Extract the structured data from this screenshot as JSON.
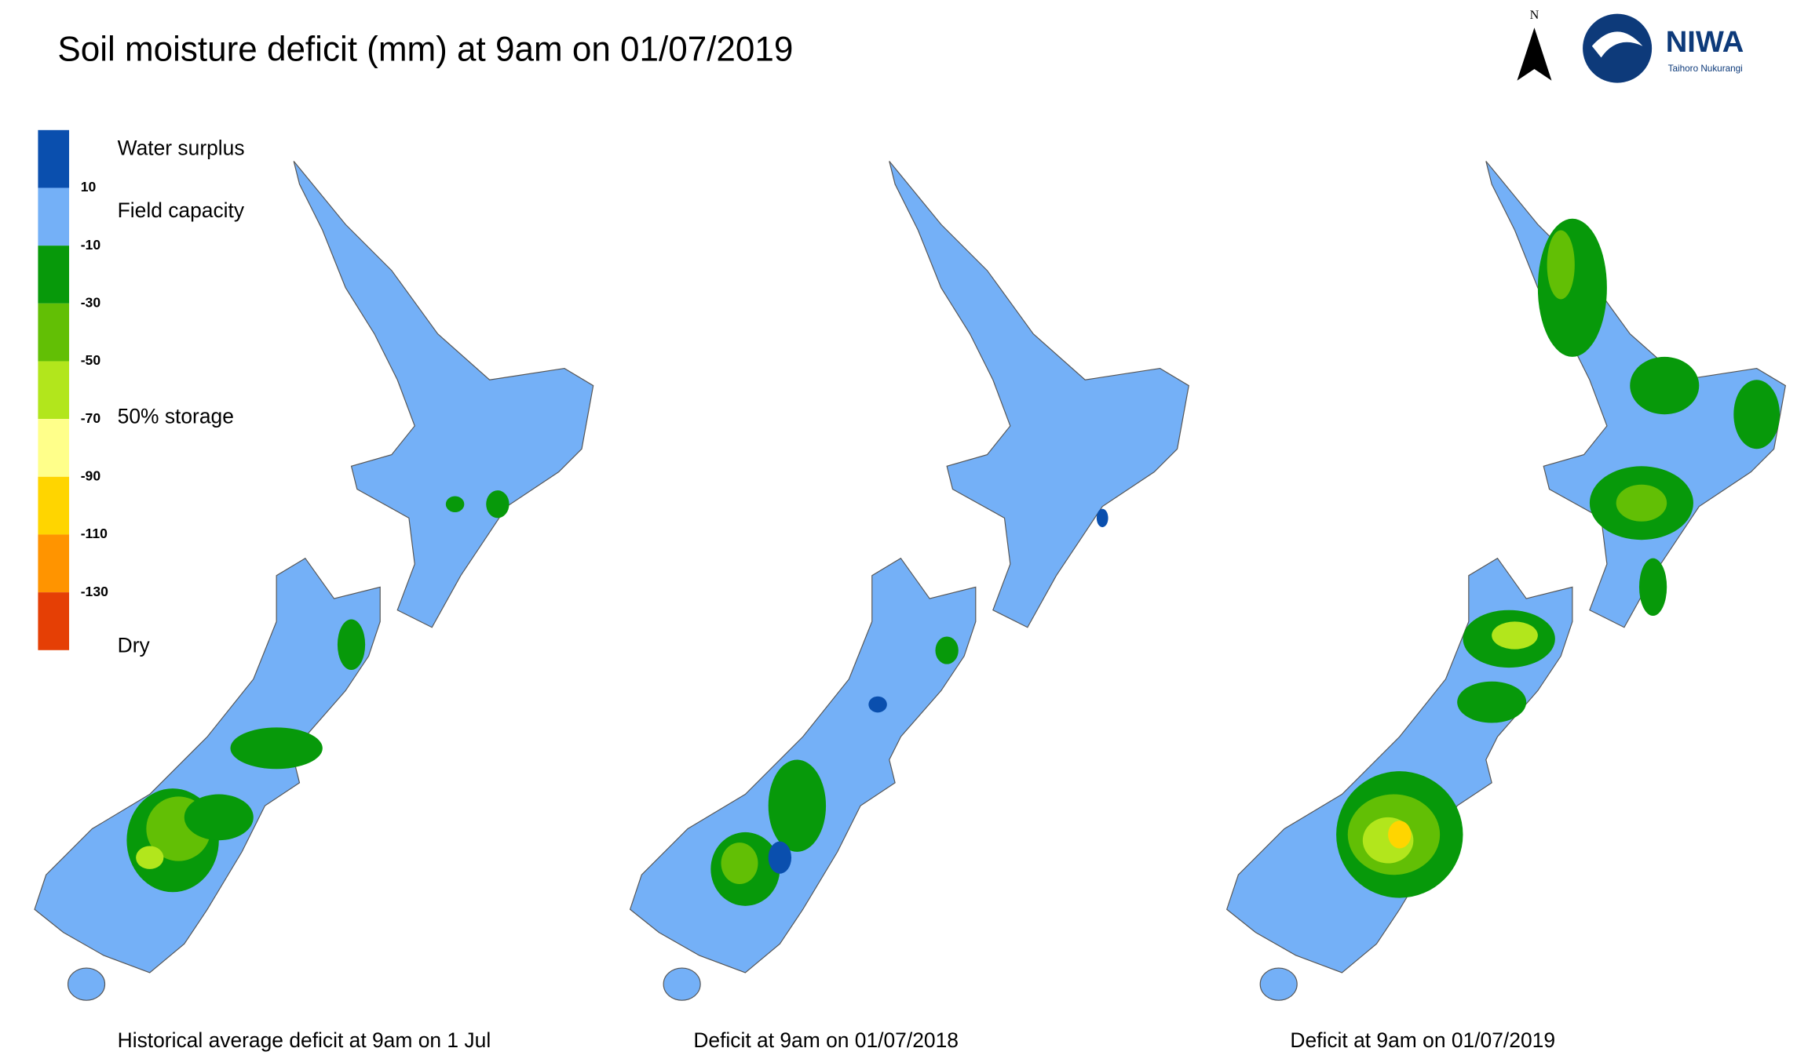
{
  "header": {
    "title": "Soil moisture deficit (mm) at  9am on 01/07/2019",
    "north": "N",
    "logo": "NIWA",
    "logo_subtitle": "Taihoro Nukurangi"
  },
  "legend": {
    "colors": [
      "#0a4fae",
      "#74b0f7",
      "#07990a",
      "#62bf05",
      "#b2e61c",
      "#ffff8a",
      "#ffd500",
      "#ff9400",
      "#e53f05"
    ],
    "ticks": [
      10,
      -10,
      -30,
      -50,
      -70,
      -90,
      -110,
      -130
    ],
    "labels": [
      "Water surplus",
      "Field capacity",
      "50% storage",
      "Dry"
    ]
  },
  "panels": [
    {
      "caption": "Historical average deficit at  9am on 1 Jul"
    },
    {
      "caption": "Deficit at  9am on 01/07/2018"
    },
    {
      "caption": "Deficit at  9am on 01/07/2019"
    }
  ]
}
